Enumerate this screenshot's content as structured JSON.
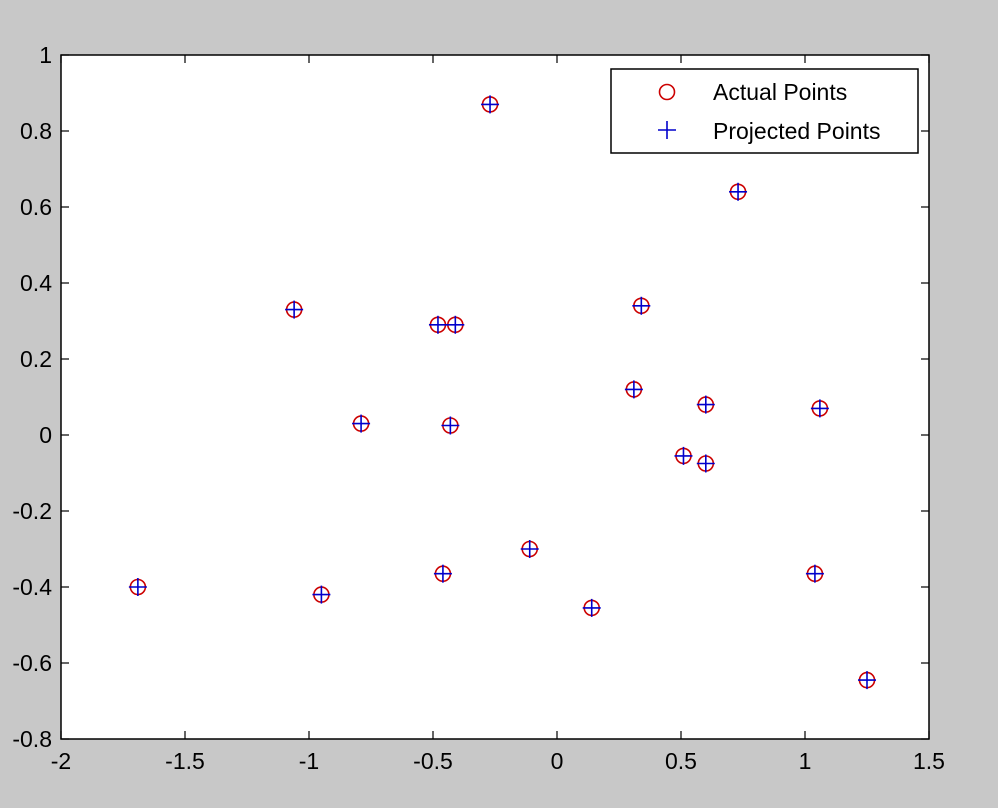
{
  "chart_data": {
    "type": "scatter",
    "title": "",
    "xlabel": "",
    "ylabel": "",
    "xlim": [
      -2,
      1.5
    ],
    "ylim": [
      -0.8,
      1
    ],
    "xticks": [
      -2,
      -1.5,
      -1,
      -0.5,
      0,
      0.5,
      1,
      1.5
    ],
    "yticks": [
      -0.8,
      -0.6,
      -0.4,
      -0.2,
      0,
      0.2,
      0.4,
      0.6,
      0.8,
      1
    ],
    "xtick_labels": [
      "-2",
      "-1.5",
      "-1",
      "-0.5",
      "0",
      "0.5",
      "1",
      "1.5"
    ],
    "ytick_labels": [
      "-0.8",
      "-0.6",
      "-0.4",
      "-0.2",
      "0",
      "0.2",
      "0.4",
      "0.6",
      "0.8",
      "1"
    ],
    "grid": false,
    "legend_position": "top-right",
    "series": [
      {
        "name": "Actual Points",
        "marker": "circle",
        "color": "#cc0000",
        "points": [
          [
            -0.27,
            0.87
          ],
          [
            0.73,
            0.64
          ],
          [
            -1.06,
            0.33
          ],
          [
            -0.48,
            0.29
          ],
          [
            -0.41,
            0.29
          ],
          [
            0.34,
            0.34
          ],
          [
            0.31,
            0.12
          ],
          [
            0.6,
            0.08
          ],
          [
            1.06,
            0.07
          ],
          [
            -0.79,
            0.03
          ],
          [
            -0.43,
            0.025
          ],
          [
            0.51,
            -0.055
          ],
          [
            0.6,
            -0.075
          ],
          [
            -0.11,
            -0.3
          ],
          [
            -1.69,
            -0.4
          ],
          [
            -0.95,
            -0.42
          ],
          [
            -0.46,
            -0.365
          ],
          [
            1.04,
            -0.365
          ],
          [
            0.14,
            -0.455
          ],
          [
            1.25,
            -0.645
          ]
        ]
      },
      {
        "name": "Projected Points",
        "marker": "plus",
        "color": "#0000cc",
        "points": [
          [
            -0.27,
            0.87
          ],
          [
            0.73,
            0.64
          ],
          [
            -1.06,
            0.33
          ],
          [
            -0.48,
            0.29
          ],
          [
            -0.41,
            0.29
          ],
          [
            0.34,
            0.34
          ],
          [
            0.31,
            0.12
          ],
          [
            0.6,
            0.08
          ],
          [
            1.06,
            0.07
          ],
          [
            -0.79,
            0.03
          ],
          [
            -0.43,
            0.025
          ],
          [
            0.51,
            -0.055
          ],
          [
            0.6,
            -0.075
          ],
          [
            -0.11,
            -0.3
          ],
          [
            -1.69,
            -0.4
          ],
          [
            -0.95,
            -0.42
          ],
          [
            -0.46,
            -0.365
          ],
          [
            1.04,
            -0.365
          ],
          [
            0.14,
            -0.455
          ],
          [
            1.25,
            -0.645
          ]
        ]
      }
    ]
  }
}
